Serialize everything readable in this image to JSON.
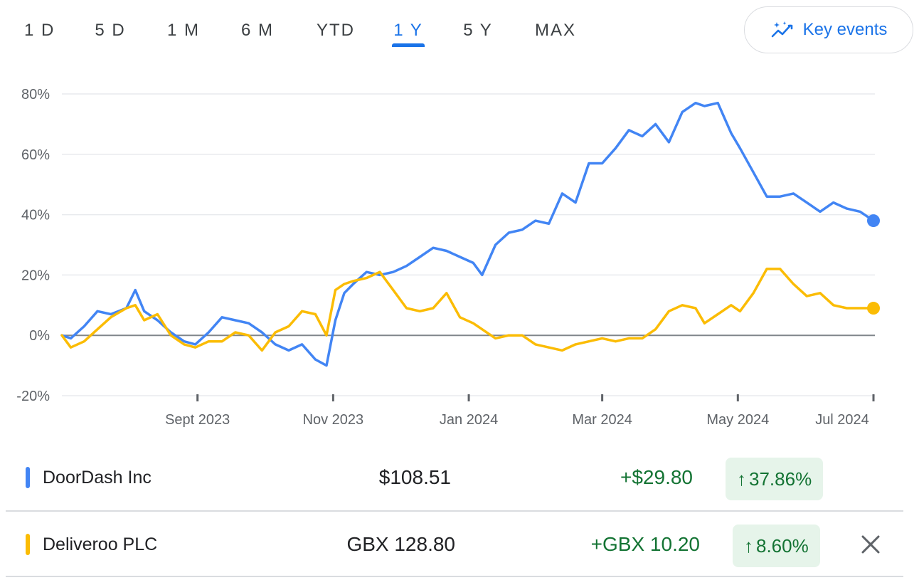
{
  "tabs": [
    {
      "label": "1 D",
      "active": false
    },
    {
      "label": "5 D",
      "active": false
    },
    {
      "label": "1 M",
      "active": false
    },
    {
      "label": "6 M",
      "active": false
    },
    {
      "label": "YTD",
      "active": false
    },
    {
      "label": "1 Y",
      "active": true
    },
    {
      "label": "5 Y",
      "active": false
    },
    {
      "label": "MAX",
      "active": false
    }
  ],
  "key_events": {
    "label": "Key events",
    "icon": "sparkle-trend-icon"
  },
  "chart_data": {
    "type": "line",
    "y_tick_labels": [
      "80%",
      "60%",
      "40%",
      "20%",
      "0%",
      "-20%"
    ],
    "y_ticks": [
      80,
      60,
      40,
      20,
      0,
      -20
    ],
    "ylim": [
      -20,
      80
    ],
    "x_tick_labels": [
      "Sept 2023",
      "Nov 2023",
      "Jan 2024",
      "Mar 2024",
      "May 2024",
      "Jul 2024"
    ],
    "x_ticks": [
      "2023-09-01",
      "2023-11-01",
      "2024-01-01",
      "2024-03-01",
      "2024-05-01",
      "2024-07-01"
    ],
    "xlim": [
      "2023-07-02",
      "2024-07-01"
    ],
    "grid": true,
    "baseline": 0,
    "series": [
      {
        "name": "DoorDash Inc",
        "color": "#4285f4",
        "x": [
          "2023-07-02",
          "2023-07-06",
          "2023-07-12",
          "2023-07-18",
          "2023-07-24",
          "2023-07-31",
          "2023-08-04",
          "2023-08-08",
          "2023-08-14",
          "2023-08-20",
          "2023-08-26",
          "2023-08-31",
          "2023-09-06",
          "2023-09-12",
          "2023-09-18",
          "2023-09-24",
          "2023-09-30",
          "2023-10-06",
          "2023-10-12",
          "2023-10-18",
          "2023-10-24",
          "2023-10-29",
          "2023-11-02",
          "2023-11-06",
          "2023-11-10",
          "2023-11-16",
          "2023-11-22",
          "2023-11-28",
          "2023-12-04",
          "2023-12-10",
          "2023-12-16",
          "2023-12-22",
          "2023-12-28",
          "2024-01-03",
          "2024-01-07",
          "2024-01-13",
          "2024-01-19",
          "2024-01-25",
          "2024-01-31",
          "2024-02-06",
          "2024-02-12",
          "2024-02-18",
          "2024-02-24",
          "2024-03-01",
          "2024-03-07",
          "2024-03-13",
          "2024-03-19",
          "2024-03-25",
          "2024-03-31",
          "2024-04-06",
          "2024-04-12",
          "2024-04-16",
          "2024-04-22",
          "2024-04-28",
          "2024-05-02",
          "2024-05-08",
          "2024-05-14",
          "2024-05-20",
          "2024-05-26",
          "2024-06-01",
          "2024-06-07",
          "2024-06-13",
          "2024-06-19",
          "2024-06-25",
          "2024-07-01"
        ],
        "values": [
          0,
          -1,
          3,
          8,
          7,
          9,
          15,
          8,
          5,
          1,
          -2,
          -3,
          1,
          6,
          5,
          4,
          1,
          -3,
          -5,
          -3,
          -8,
          -10,
          5,
          14,
          17,
          21,
          20,
          21,
          23,
          26,
          29,
          28,
          26,
          24,
          20,
          30,
          34,
          35,
          38,
          37,
          47,
          44,
          57,
          57,
          62,
          68,
          66,
          70,
          64,
          74,
          77,
          76,
          77,
          67,
          62,
          54,
          46,
          46,
          47,
          44,
          41,
          44,
          42,
          41,
          38
        ]
      },
      {
        "name": "Deliveroo PLC",
        "color": "#fbbc04",
        "x": [
          "2023-07-02",
          "2023-07-06",
          "2023-07-12",
          "2023-07-18",
          "2023-07-24",
          "2023-07-31",
          "2023-08-04",
          "2023-08-08",
          "2023-08-14",
          "2023-08-20",
          "2023-08-26",
          "2023-08-31",
          "2023-09-06",
          "2023-09-12",
          "2023-09-18",
          "2023-09-24",
          "2023-09-30",
          "2023-10-06",
          "2023-10-12",
          "2023-10-18",
          "2023-10-24",
          "2023-10-29",
          "2023-11-02",
          "2023-11-06",
          "2023-11-10",
          "2023-11-16",
          "2023-11-22",
          "2023-11-28",
          "2023-12-04",
          "2023-12-10",
          "2023-12-16",
          "2023-12-22",
          "2023-12-28",
          "2024-01-03",
          "2024-01-07",
          "2024-01-13",
          "2024-01-19",
          "2024-01-25",
          "2024-01-31",
          "2024-02-06",
          "2024-02-12",
          "2024-02-18",
          "2024-02-24",
          "2024-03-01",
          "2024-03-07",
          "2024-03-13",
          "2024-03-19",
          "2024-03-25",
          "2024-03-31",
          "2024-04-06",
          "2024-04-12",
          "2024-04-16",
          "2024-04-22",
          "2024-04-28",
          "2024-05-02",
          "2024-05-08",
          "2024-05-14",
          "2024-05-20",
          "2024-05-26",
          "2024-06-01",
          "2024-06-07",
          "2024-06-13",
          "2024-06-19",
          "2024-06-25",
          "2024-07-01"
        ],
        "values": [
          0,
          -4,
          -2,
          2,
          6,
          9,
          10,
          5,
          7,
          0,
          -3,
          -4,
          -2,
          -2,
          1,
          0,
          -5,
          1,
          3,
          8,
          7,
          0,
          15,
          17,
          18,
          19,
          21,
          15,
          9,
          8,
          9,
          14,
          6,
          4,
          2,
          -1,
          0,
          0,
          -3,
          -4,
          -5,
          -3,
          -2,
          -1,
          -2,
          -1,
          -1,
          2,
          8,
          10,
          9,
          4,
          7,
          10,
          8,
          14,
          22,
          22,
          17,
          13,
          14,
          10,
          9,
          9,
          9
        ]
      }
    ]
  },
  "rows": [
    {
      "name": "DoorDash Inc",
      "color": "#4285f4",
      "price": "$108.51",
      "change": "+$29.80",
      "pct": "37.86%",
      "arrow": "↑",
      "closable": false
    },
    {
      "name": "Deliveroo PLC",
      "color": "#fbbc04",
      "price": "GBX 128.80",
      "change": "+GBX 10.20",
      "pct": "8.60%",
      "arrow": "↑",
      "closable": true
    }
  ]
}
